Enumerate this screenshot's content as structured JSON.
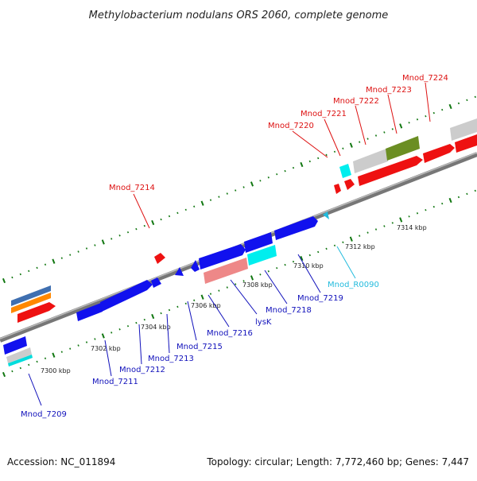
{
  "title": "Methylobacterium nodulans ORS 2060, complete genome",
  "accession": "Accession: NC_011894",
  "summary": "Topology: circular; Length: 7,772,460 bp; Genes: 7,447",
  "colors": {
    "forward_label": "#dd1111",
    "reverse_label": "#1111bb",
    "rna_label": "#22bbdd",
    "tick": "#117711",
    "backbone": "#888888"
  },
  "scale_labels": [
    "7300 kbp",
    "7302 kbp",
    "7304 kbp",
    "7306 kbp",
    "7308 kbp",
    "7310 kbp",
    "7312 kbp",
    "7314 kbp"
  ],
  "forward_labels": [
    "Mnod_7214",
    "Mnod_7220",
    "Mnod_7221",
    "Mnod_7222",
    "Mnod_7223",
    "Mnod_7224"
  ],
  "reverse_labels": [
    "Mnod_7209",
    "Mnod_7211",
    "Mnod_7212",
    "Mnod_7213",
    "Mnod_7215",
    "Mnod_7216",
    "lysK",
    "Mnod_7218",
    "Mnod_7219",
    "Mnod_R0090"
  ]
}
